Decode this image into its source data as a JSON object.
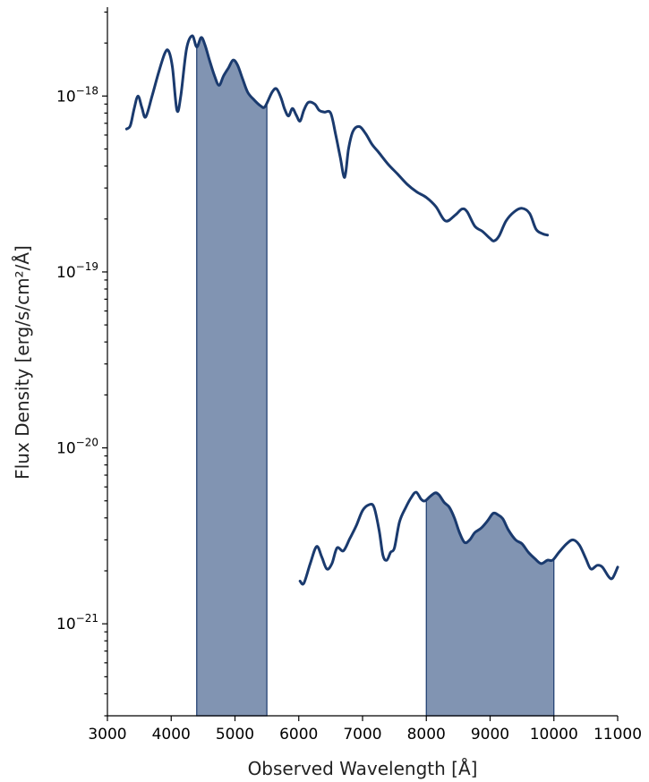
{
  "chart_data": {
    "type": "line",
    "xlabel": "Observed Wavelength [Å]",
    "ylabel": "Flux Density [erg/s/cm²/Å]",
    "xlim": [
      3000,
      11000
    ],
    "ylim": [
      3e-22,
      3.2e-18
    ],
    "yscale": "log",
    "grid": false,
    "x_ticks": [
      3000,
      4000,
      5000,
      6000,
      7000,
      8000,
      9000,
      10000,
      11000
    ],
    "x_tick_labels": [
      "3000",
      "4000",
      "5000",
      "6000",
      "7000",
      "8000",
      "9000",
      "10000",
      "11000"
    ],
    "y_major_ticks": [
      {
        "value": 1e-21,
        "base": "10",
        "exp": "−21"
      },
      {
        "value": 1e-20,
        "base": "10",
        "exp": "−20"
      },
      {
        "value": 1e-19,
        "base": "10",
        "exp": "−19"
      },
      {
        "value": 1e-18,
        "base": "10",
        "exp": "−18"
      }
    ],
    "series": [
      {
        "color": "#1a3a6e",
        "points": [
          [
            3300,
            6.5e-19
          ],
          [
            3360,
            6.8e-19
          ],
          [
            3420,
            8.5e-19
          ],
          [
            3480,
            1e-18
          ],
          [
            3540,
            8.6e-19
          ],
          [
            3600,
            7.6e-19
          ],
          [
            3700,
            1e-18
          ],
          [
            3800,
            1.35e-18
          ],
          [
            3900,
            1.75e-18
          ],
          [
            3960,
            1.8e-18
          ],
          [
            4020,
            1.45e-18
          ],
          [
            4090,
            8.3e-19
          ],
          [
            4150,
            1e-18
          ],
          [
            4240,
            1.85e-18
          ],
          [
            4330,
            2.2e-18
          ],
          [
            4400,
            1.9e-18
          ],
          [
            4470,
            2.15e-18
          ],
          [
            4530,
            1.95e-18
          ],
          [
            4600,
            1.6e-18
          ],
          [
            4680,
            1.3e-18
          ],
          [
            4750,
            1.15e-18
          ],
          [
            4820,
            1.3e-18
          ],
          [
            4900,
            1.45e-18
          ],
          [
            4970,
            1.6e-18
          ],
          [
            5040,
            1.5e-18
          ],
          [
            5120,
            1.25e-18
          ],
          [
            5200,
            1.05e-18
          ],
          [
            5300,
            9.5e-19
          ],
          [
            5400,
            8.8e-19
          ],
          [
            5470,
            8.7e-19
          ],
          [
            5580,
            1.05e-18
          ],
          [
            5650,
            1.1e-18
          ],
          [
            5720,
            9.8e-19
          ],
          [
            5780,
            8.4e-19
          ],
          [
            5840,
            7.7e-19
          ],
          [
            5900,
            8.5e-19
          ],
          [
            5960,
            7.8e-19
          ],
          [
            6020,
            7.2e-19
          ],
          [
            6080,
            8.3e-19
          ],
          [
            6150,
            9.2e-19
          ],
          [
            6250,
            9e-19
          ],
          [
            6320,
            8.3e-19
          ],
          [
            6400,
            8.1e-19
          ],
          [
            6500,
            8e-19
          ],
          [
            6580,
            6e-19
          ],
          [
            6650,
            4.5e-19
          ],
          [
            6720,
            3.45e-19
          ],
          [
            6780,
            5e-19
          ],
          [
            6850,
            6.3e-19
          ],
          [
            6950,
            6.7e-19
          ],
          [
            7050,
            6.1e-19
          ],
          [
            7150,
            5.3e-19
          ],
          [
            7250,
            4.8e-19
          ],
          [
            7400,
            4.1e-19
          ],
          [
            7550,
            3.6e-19
          ],
          [
            7700,
            3.15e-19
          ],
          [
            7850,
            2.85e-19
          ],
          [
            8000,
            2.65e-19
          ],
          [
            8150,
            2.35e-19
          ],
          [
            8300,
            1.95e-19
          ],
          [
            8450,
            2.1e-19
          ],
          [
            8560,
            2.28e-19
          ],
          [
            8640,
            2.2e-19
          ],
          [
            8760,
            1.82e-19
          ],
          [
            8880,
            1.7e-19
          ],
          [
            9000,
            1.55e-19
          ],
          [
            9060,
            1.5e-19
          ],
          [
            9140,
            1.6e-19
          ],
          [
            9250,
            1.95e-19
          ],
          [
            9380,
            2.2e-19
          ],
          [
            9500,
            2.3e-19
          ],
          [
            9620,
            2.15e-19
          ],
          [
            9720,
            1.75e-19
          ],
          [
            9820,
            1.65e-19
          ],
          [
            9900,
            1.62e-19
          ]
        ]
      },
      {
        "color": "#1a3a6e",
        "points": [
          [
            6020,
            1.75e-21
          ],
          [
            6080,
            1.7e-21
          ],
          [
            6180,
            2.2e-21
          ],
          [
            6280,
            2.75e-21
          ],
          [
            6360,
            2.4e-21
          ],
          [
            6440,
            2.05e-21
          ],
          [
            6520,
            2.2e-21
          ],
          [
            6600,
            2.7e-21
          ],
          [
            6700,
            2.6e-21
          ],
          [
            6800,
            3.05e-21
          ],
          [
            6900,
            3.6e-21
          ],
          [
            7000,
            4.4e-21
          ],
          [
            7100,
            4.75e-21
          ],
          [
            7180,
            4.6e-21
          ],
          [
            7260,
            3.4e-21
          ],
          [
            7320,
            2.45e-21
          ],
          [
            7380,
            2.3e-21
          ],
          [
            7440,
            2.55e-21
          ],
          [
            7500,
            2.7e-21
          ],
          [
            7580,
            3.8e-21
          ],
          [
            7680,
            4.6e-21
          ],
          [
            7760,
            5.2e-21
          ],
          [
            7840,
            5.6e-21
          ],
          [
            7920,
            5.1e-21
          ],
          [
            7980,
            5e-21
          ],
          [
            8060,
            5.3e-21
          ],
          [
            8140,
            5.55e-21
          ],
          [
            8200,
            5.4e-21
          ],
          [
            8280,
            4.9e-21
          ],
          [
            8360,
            4.6e-21
          ],
          [
            8440,
            4e-21
          ],
          [
            8520,
            3.3e-21
          ],
          [
            8600,
            2.9e-21
          ],
          [
            8680,
            3e-21
          ],
          [
            8760,
            3.3e-21
          ],
          [
            8860,
            3.5e-21
          ],
          [
            8960,
            3.85e-21
          ],
          [
            9050,
            4.25e-21
          ],
          [
            9130,
            4.15e-21
          ],
          [
            9200,
            3.95e-21
          ],
          [
            9290,
            3.4e-21
          ],
          [
            9400,
            3e-21
          ],
          [
            9500,
            2.85e-21
          ],
          [
            9600,
            2.55e-21
          ],
          [
            9700,
            2.35e-21
          ],
          [
            9800,
            2.2e-21
          ],
          [
            9900,
            2.3e-21
          ],
          [
            9980,
            2.3e-21
          ],
          [
            10080,
            2.55e-21
          ],
          [
            10200,
            2.85e-21
          ],
          [
            10300,
            3e-21
          ],
          [
            10400,
            2.8e-21
          ],
          [
            10500,
            2.35e-21
          ],
          [
            10580,
            2.05e-21
          ],
          [
            10680,
            2.15e-21
          ],
          [
            10760,
            2.1e-21
          ],
          [
            10860,
            1.85e-21
          ],
          [
            10920,
            1.82e-21
          ],
          [
            11000,
            2.1e-21
          ]
        ]
      }
    ],
    "shaded_regions": [
      {
        "series": 0,
        "x0": 4400,
        "x1": 5500,
        "color": "#8194b2"
      },
      {
        "series": 1,
        "x0": 8000,
        "x1": 10000,
        "color": "#8194b2"
      }
    ]
  }
}
